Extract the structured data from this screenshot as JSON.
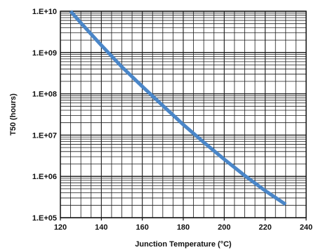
{
  "chart_data": {
    "type": "line",
    "title": "",
    "xlabel": "Junction Temperature (°C)",
    "ylabel": "T50 (hours)",
    "xlim": [
      120,
      240
    ],
    "ylim": [
      100000,
      10000000000
    ],
    "yscale": "log",
    "grid": true,
    "legend": "none",
    "x_ticks": [
      120,
      140,
      160,
      180,
      200,
      220,
      240
    ],
    "x_tick_labels": [
      "120",
      "140",
      "160",
      "180",
      "200",
      "220",
      "240"
    ],
    "y_ticks": [
      100000,
      1000000,
      10000000,
      100000000,
      1000000000,
      10000000000
    ],
    "y_tick_labels": [
      "1.E+05",
      "1.E+06",
      "1.E+07",
      "1.E+08",
      "1.E+09",
      "1.E+10"
    ],
    "series": [
      {
        "color": "#4a86c8",
        "x": [
          125,
          130,
          140,
          150,
          160,
          170,
          180,
          190,
          200,
          210,
          220,
          230
        ],
        "y": [
          10000000000,
          5200000000,
          1500000000,
          450000000,
          150000000,
          52000000,
          18000000,
          6700000,
          2600000,
          1050000,
          450000,
          210000
        ]
      }
    ]
  }
}
